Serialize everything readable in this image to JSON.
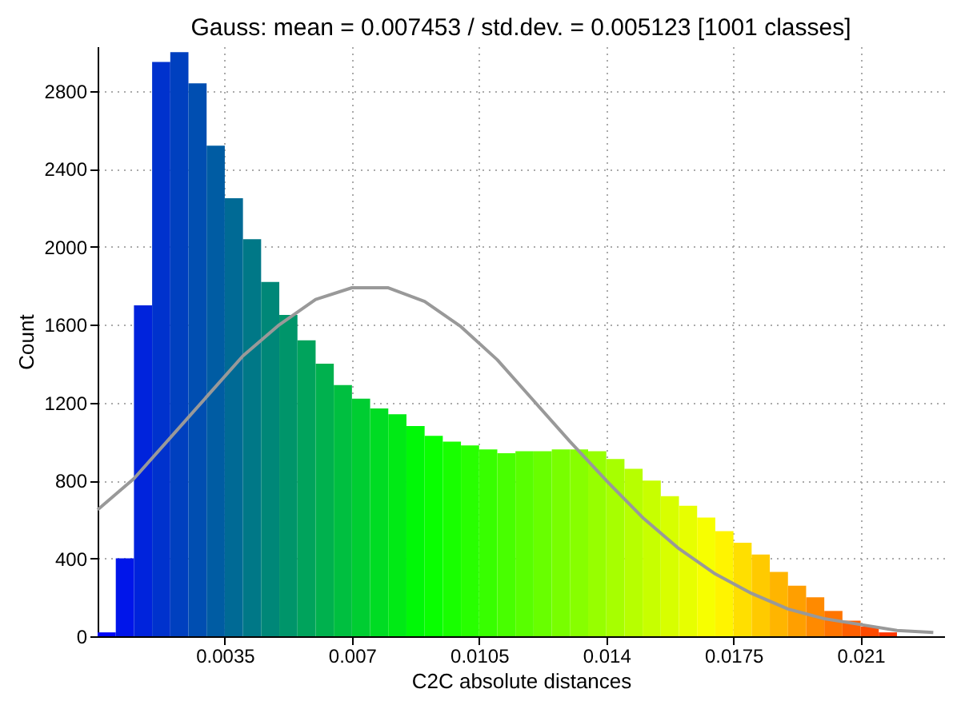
{
  "chart_data": {
    "type": "histogram",
    "title": "Gauss: mean = 0.007453 / std.dev. = 0.005123 [1001 classes]",
    "xlabel": "C2C absolute distances",
    "ylabel": "Count",
    "bins": [
      0,
      0.0005,
      0.001,
      0.0015,
      0.002,
      0.0025,
      0.003,
      0.0035,
      0.004,
      0.0045,
      0.005,
      0.0055,
      0.006,
      0.0065,
      0.007,
      0.0075,
      0.008,
      0.0085,
      0.009,
      0.0095,
      0.01,
      0.0105,
      0.011,
      0.0115,
      0.012,
      0.0125,
      0.013,
      0.0135,
      0.014,
      0.0145,
      0.015,
      0.0155,
      0.016,
      0.0165,
      0.017,
      0.0175,
      0.018,
      0.0185,
      0.019,
      0.0195,
      0.02,
      0.0205,
      0.021,
      0.0215,
      0.022,
      0.0225
    ],
    "series": [
      {
        "values": [
          20,
          400,
          1700,
          2950,
          3000,
          2840,
          2520,
          2250,
          2040,
          1820,
          1650,
          1520,
          1400,
          1290,
          1220,
          1170,
          1140,
          1080,
          1030,
          1000,
          980,
          960,
          940,
          950,
          950,
          960,
          960,
          950,
          910,
          860,
          800,
          720,
          670,
          610,
          540,
          480,
          420,
          330,
          260,
          200,
          130,
          80,
          50,
          20,
          0
        ],
        "colors": [
          "#0007f8",
          "#0015ea",
          "#0023dc",
          "#0032cd",
          "#0040bf",
          "#004eb1",
          "#005ca3",
          "#006a95",
          "#007887",
          "#008778",
          "#00956a",
          "#00a35c",
          "#00b14e",
          "#00bf40",
          "#00cd32",
          "#00dc23",
          "#00ea15",
          "#00f807",
          "#08ff00",
          "#18ff00",
          "#28ff00",
          "#38ff00",
          "#48ff00",
          "#58ff00",
          "#68ff00",
          "#78ff00",
          "#87ff00",
          "#97ff00",
          "#a7ff00",
          "#b7ff00",
          "#c7ff00",
          "#d7ff00",
          "#e7ff00",
          "#f7ff00",
          "#fff400",
          "#ffdf00",
          "#ffca00",
          "#ffb500",
          "#ff9f00",
          "#ff8a00",
          "#ff7500",
          "#ff6000",
          "#ff4a00",
          "#ff3500",
          "#ff2000"
        ]
      },
      {
        "type": "line",
        "color": "#999999",
        "x": [
          0,
          0.001,
          0.002,
          0.003,
          0.004,
          0.005,
          0.006,
          0.007,
          0.008,
          0.009,
          0.01,
          0.011,
          0.012,
          0.013,
          0.014,
          0.015,
          0.016,
          0.017,
          0.018,
          0.019,
          0.02,
          0.021,
          0.022,
          0.023
        ],
        "values": [
          650,
          810,
          1020,
          1230,
          1440,
          1600,
          1730,
          1790,
          1790,
          1720,
          1590,
          1420,
          1210,
          1000,
          800,
          610,
          450,
          320,
          220,
          140,
          90,
          60,
          30,
          20
        ]
      }
    ],
    "xlim": [
      0,
      0.0233
    ],
    "xticks": [
      0.0035,
      0.007,
      0.0105,
      0.014,
      0.0175,
      0.021
    ],
    "ylim": [
      0,
      3030
    ],
    "yticks": [
      0,
      400,
      800,
      1200,
      1600,
      2000,
      2400,
      2800
    ],
    "grid": true
  }
}
